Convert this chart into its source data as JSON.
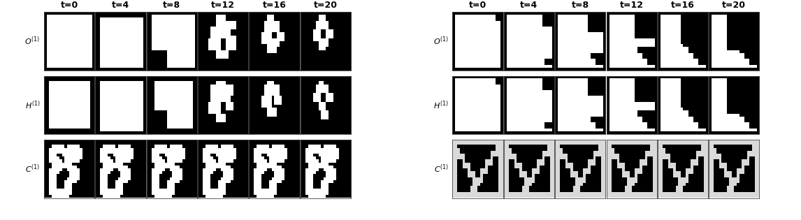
{
  "time_labels": [
    "t=0",
    "t=4",
    "t=8",
    "t=12",
    "t=16",
    "t=20"
  ],
  "left_row_labels": [
    "$O^{(1)}$",
    "$H^{(1)}$",
    "$C^{(1)}$"
  ],
  "right_row_labels": [
    "$O^{(1)}$",
    "$H^{(1)}$",
    "$C^{(1)}$"
  ],
  "label_fontsize": 8,
  "title_fontsize": 9,
  "grid_n": 20
}
